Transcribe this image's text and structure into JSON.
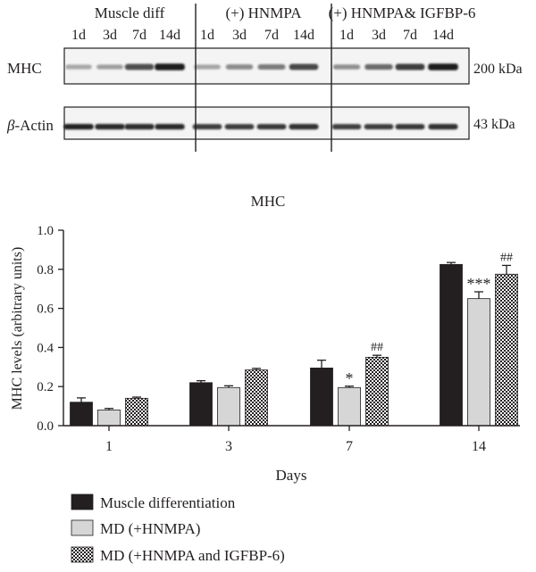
{
  "blot": {
    "group_labels": [
      "Muscle diff",
      "(+) HNMPA",
      "(+) HNMPA& IGFBP-6"
    ],
    "lane_labels": [
      "1d",
      "3d",
      "7d",
      "14d"
    ],
    "bands": [
      {
        "label": "MHC",
        "size": "200 kDa",
        "intensity": [
          0.28,
          0.32,
          0.72,
          0.95,
          0.3,
          0.42,
          0.5,
          0.75,
          0.4,
          0.58,
          0.8,
          0.95
        ]
      },
      {
        "label_greek": "β",
        "label_rest": "-Actin",
        "size": "43 kDa",
        "intensity": [
          0.92,
          0.9,
          0.88,
          0.9,
          0.8,
          0.8,
          0.82,
          0.85,
          0.78,
          0.8,
          0.82,
          0.85
        ]
      }
    ]
  },
  "chart_data": {
    "type": "bar",
    "title": "MHC",
    "xlabel": "Days",
    "ylabel": "MHC levels (arbitrary units)",
    "ylim": [
      0,
      1.0
    ],
    "yticks": [
      "0.0",
      "0.2",
      "0.4",
      "0.6",
      "0.8",
      "1.0"
    ],
    "ytick_values": [
      0,
      0.2,
      0.4,
      0.6,
      0.8,
      1.0
    ],
    "categories": [
      "1",
      "3",
      "7",
      "14"
    ],
    "legend_position": "bottom",
    "series": [
      {
        "name": "Muscle differentiation",
        "fill": "#231f20",
        "pattern": "solid",
        "values": [
          0.12,
          0.22,
          0.295,
          0.825
        ],
        "errors": [
          0.022,
          0.01,
          0.04,
          0.01
        ],
        "annotations": [
          "",
          "",
          "",
          ""
        ]
      },
      {
        "name": "MD (+HNMPA)",
        "fill": "#d6d6d6",
        "pattern": "solid",
        "values": [
          0.08,
          0.195,
          0.195,
          0.65
        ],
        "errors": [
          0.008,
          0.009,
          0.007,
          0.035
        ],
        "annotations": [
          "",
          "",
          "*",
          "***"
        ]
      },
      {
        "name": "MD (+HNMPA and IGFBP-6)",
        "fill": "#ffffff",
        "pattern": "checker",
        "values": [
          0.14,
          0.285,
          0.35,
          0.775
        ],
        "errors": [
          0.006,
          0.008,
          0.01,
          0.045
        ],
        "annotations": [
          "",
          "",
          "##",
          "##"
        ]
      }
    ]
  }
}
